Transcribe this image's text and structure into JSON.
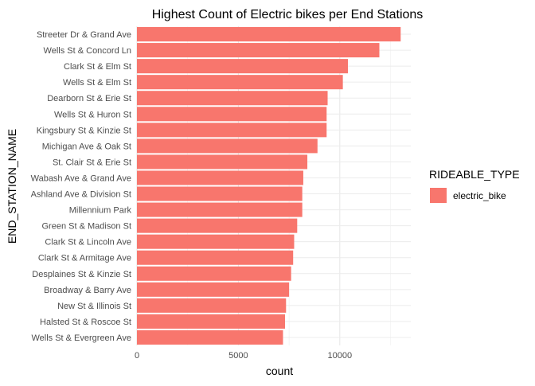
{
  "chart_data": {
    "type": "bar",
    "orientation": "horizontal",
    "title": "Highest Count of Electric bikes per End Stations",
    "xlabel": "count",
    "ylabel": "END_STATION_NAME",
    "xlim": [
      0,
      13500
    ],
    "x_ticks": [
      0,
      5000,
      10000
    ],
    "grid": true,
    "legend": {
      "title": "RIDEABLE_TYPE",
      "position": "right",
      "entries": [
        {
          "label": "electric_bike",
          "color": "#F8766D"
        }
      ]
    },
    "categories": [
      "Streeter Dr & Grand Ave",
      "Wells St & Concord Ln",
      "Clark St & Elm St",
      "Wells St & Elm St",
      "Dearborn St & Erie St",
      "Wells St & Huron St",
      "Kingsbury St & Kinzie St",
      "Michigan Ave & Oak St",
      "St. Clair St & Erie St",
      "Wabash Ave & Grand Ave",
      "Ashland Ave & Division St",
      "Millennium Park",
      "Green St & Madison St",
      "Clark St & Lincoln Ave",
      "Clark St & Armitage Ave",
      "Desplaines St & Kinzie St",
      "Broadway & Barry Ave",
      "New St & Illinois St",
      "Halsted St & Roscoe St",
      "Wells St & Evergreen Ave"
    ],
    "series": [
      {
        "name": "electric_bike",
        "color": "#F8766D",
        "values": [
          13000,
          11950,
          10400,
          10150,
          9400,
          9350,
          9350,
          8900,
          8400,
          8200,
          8150,
          8150,
          7900,
          7750,
          7700,
          7600,
          7500,
          7350,
          7300,
          7200
        ]
      }
    ]
  }
}
